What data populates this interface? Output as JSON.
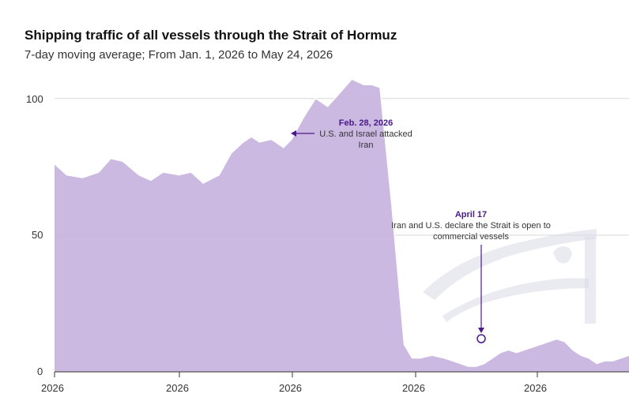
{
  "chart_data": {
    "type": "area",
    "title": "Shipping traffic of all vessels through the Strait of Hormuz",
    "subtitle": "7-day moving average; From Jan. 1, 2026 to May 24, 2026",
    "xlabel": "",
    "ylabel": "",
    "ylim": [
      0,
      108
    ],
    "yticks": [
      "100",
      "50",
      "0"
    ],
    "xticks": [
      "2026",
      "2026",
      "2026",
      "2026",
      "2026"
    ],
    "grid": "horizontal",
    "colors": {
      "fill": "#c8b3de",
      "line": "#9d7fc4",
      "accent": "#4b1a8a"
    },
    "x": [
      1,
      4,
      8,
      12,
      15,
      18,
      22,
      25,
      28,
      32,
      35,
      38,
      42,
      45,
      48,
      50,
      52,
      55,
      58,
      60,
      63,
      66,
      69,
      72,
      75,
      78,
      80,
      82,
      85,
      88,
      90,
      92,
      95,
      98,
      100,
      102,
      104,
      106,
      108,
      110,
      112,
      114,
      116,
      118,
      120,
      122,
      124,
      126,
      128,
      130,
      132,
      134,
      136,
      138,
      140,
      142,
      144
    ],
    "values": [
      76,
      72,
      71,
      73,
      78,
      77,
      72,
      70,
      73,
      72,
      73,
      69,
      72,
      80,
      84,
      86,
      84,
      85,
      82,
      85,
      93,
      100,
      97,
      102,
      107,
      105,
      105,
      104,
      60,
      10,
      5,
      5,
      6,
      5,
      4,
      3,
      2,
      2,
      3,
      5,
      7,
      8,
      7,
      8,
      9,
      10,
      11,
      12,
      11,
      8,
      6,
      5,
      3,
      4,
      4,
      5,
      6
    ]
  },
  "annotations": [
    {
      "title": "Feb. 28, 2026",
      "text_lines": [
        "U.S. and Israel attacked",
        "Iran"
      ]
    },
    {
      "title": "April 17",
      "text_lines": [
        "Iran and U.S. declare the Strait is open to",
        "commercial vessels"
      ]
    }
  ],
  "watermark": {
    "icon": "publisher-logo-watermark"
  }
}
